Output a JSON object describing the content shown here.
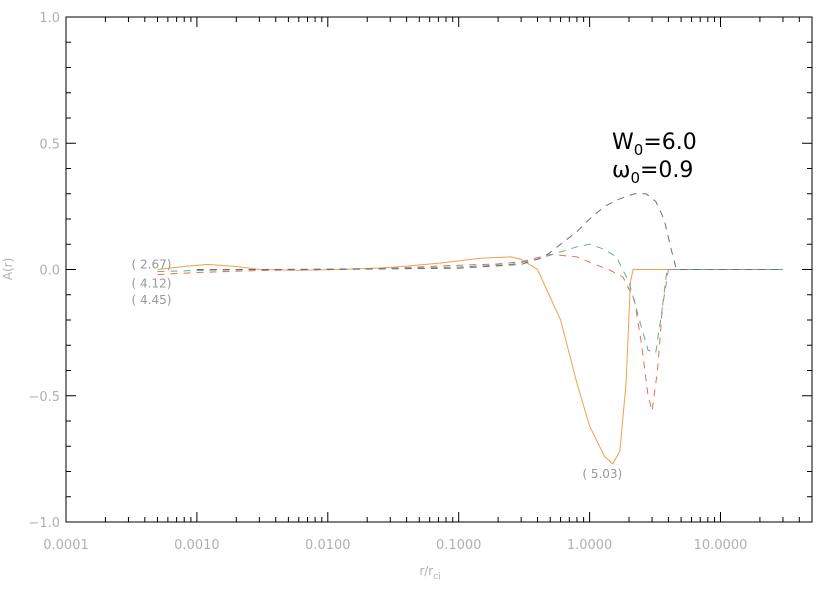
{
  "chart_data": {
    "type": "line",
    "xlabel": "r/r",
    "xlabel_sub": "ci",
    "ylabel": "A(r)",
    "xscale": "log",
    "xlim": [
      0.0001,
      50
    ],
    "ylim": [
      -1.0,
      1.0
    ],
    "xticks": [
      {
        "value": 0.0001,
        "label": "0.0001"
      },
      {
        "value": 0.001,
        "label": "0.0010"
      },
      {
        "value": 0.01,
        "label": "0.0100"
      },
      {
        "value": 0.1,
        "label": "0.1000"
      },
      {
        "value": 1.0,
        "label": "1.0000"
      },
      {
        "value": 10.0,
        "label": "10.0000"
      }
    ],
    "yticks": [
      {
        "value": -1.0,
        "label": "−1.0"
      },
      {
        "value": -0.5,
        "label": "−0.5"
      },
      {
        "value": 0.0,
        "label": "0.0"
      },
      {
        "value": 0.5,
        "label": "0.5"
      },
      {
        "value": 1.0,
        "label": "1.0"
      }
    ],
    "legend_text": {
      "line1_main": "W",
      "line1_sub": "0",
      "line1_rest": "=6.0",
      "line2_main": "ω",
      "line2_sub": "0",
      "line2_rest": "=0.9"
    },
    "annotations": [
      {
        "text": "( 2.67)",
        "x": 0.00045,
        "y": 0.02
      },
      {
        "text": "( 4.12)",
        "x": 0.00045,
        "y": -0.055
      },
      {
        "text": "( 4.45)",
        "x": 0.00045,
        "y": -0.12
      },
      {
        "text": "( 5.03)",
        "x": 1.25,
        "y": -0.81
      }
    ],
    "series": [
      {
        "color": "#f0a050",
        "dash": "",
        "points": [
          [
            0.0005,
            0.0
          ],
          [
            0.0008,
            0.012
          ],
          [
            0.0012,
            0.02
          ],
          [
            0.002,
            0.012
          ],
          [
            0.003,
            0.0
          ],
          [
            0.006,
            -0.003
          ],
          [
            0.012,
            0.0
          ],
          [
            0.03,
            0.008
          ],
          [
            0.07,
            0.025
          ],
          [
            0.15,
            0.045
          ],
          [
            0.25,
            0.05
          ],
          [
            0.3,
            0.04
          ],
          [
            0.4,
            0.0
          ],
          [
            0.6,
            -0.2
          ],
          [
            0.8,
            -0.45
          ],
          [
            1.0,
            -0.62
          ],
          [
            1.3,
            -0.74
          ],
          [
            1.5,
            -0.77
          ],
          [
            1.7,
            -0.72
          ],
          [
            1.9,
            -0.45
          ],
          [
            2.05,
            -0.05
          ],
          [
            2.15,
            0.0
          ],
          [
            30.0,
            0.0
          ]
        ]
      },
      {
        "color": "#e07060",
        "dash": "7,6",
        "points": [
          [
            0.0005,
            -0.02
          ],
          [
            0.001,
            -0.012
          ],
          [
            0.003,
            -0.004
          ],
          [
            0.01,
            0.0
          ],
          [
            0.03,
            0.005
          ],
          [
            0.08,
            0.015
          ],
          [
            0.2,
            0.022
          ],
          [
            0.3,
            0.03
          ],
          [
            0.5,
            0.06
          ],
          [
            0.8,
            0.05
          ],
          [
            1.1,
            0.02
          ],
          [
            1.4,
            0.0
          ],
          [
            1.8,
            -0.03
          ],
          [
            2.2,
            -0.12
          ],
          [
            2.5,
            -0.3
          ],
          [
            2.8,
            -0.5
          ],
          [
            3.0,
            -0.56
          ],
          [
            3.3,
            -0.4
          ],
          [
            3.6,
            -0.15
          ],
          [
            3.9,
            0.0
          ],
          [
            30.0,
            0.0
          ]
        ]
      },
      {
        "color": "#60b090",
        "dash": "7,6",
        "points": [
          [
            0.0005,
            -0.008
          ],
          [
            0.001,
            -0.004
          ],
          [
            0.003,
            0.0
          ],
          [
            0.01,
            0.002
          ],
          [
            0.03,
            0.004
          ],
          [
            0.1,
            0.01
          ],
          [
            0.25,
            0.02
          ],
          [
            0.4,
            0.04
          ],
          [
            0.6,
            0.07
          ],
          [
            0.8,
            0.09
          ],
          [
            1.0,
            0.1
          ],
          [
            1.3,
            0.08
          ],
          [
            1.6,
            0.05
          ],
          [
            2.0,
            -0.05
          ],
          [
            2.4,
            -0.2
          ],
          [
            2.8,
            -0.32
          ],
          [
            3.2,
            -0.33
          ],
          [
            3.6,
            -0.15
          ],
          [
            4.0,
            0.0
          ],
          [
            30.0,
            0.0
          ]
        ]
      },
      {
        "color": "#707070",
        "dash": "7,6",
        "points": [
          [
            0.001,
            0.0
          ],
          [
            0.01,
            0.0
          ],
          [
            0.1,
            0.005
          ],
          [
            0.3,
            0.02
          ],
          [
            0.45,
            0.05
          ],
          [
            0.6,
            0.1
          ],
          [
            0.8,
            0.15
          ],
          [
            1.0,
            0.2
          ],
          [
            1.3,
            0.25
          ],
          [
            1.7,
            0.28
          ],
          [
            2.2,
            0.3
          ],
          [
            2.7,
            0.3
          ],
          [
            3.2,
            0.27
          ],
          [
            3.7,
            0.2
          ],
          [
            4.2,
            0.08
          ],
          [
            4.6,
            0.0
          ],
          [
            30.0,
            0.0
          ]
        ]
      }
    ]
  }
}
